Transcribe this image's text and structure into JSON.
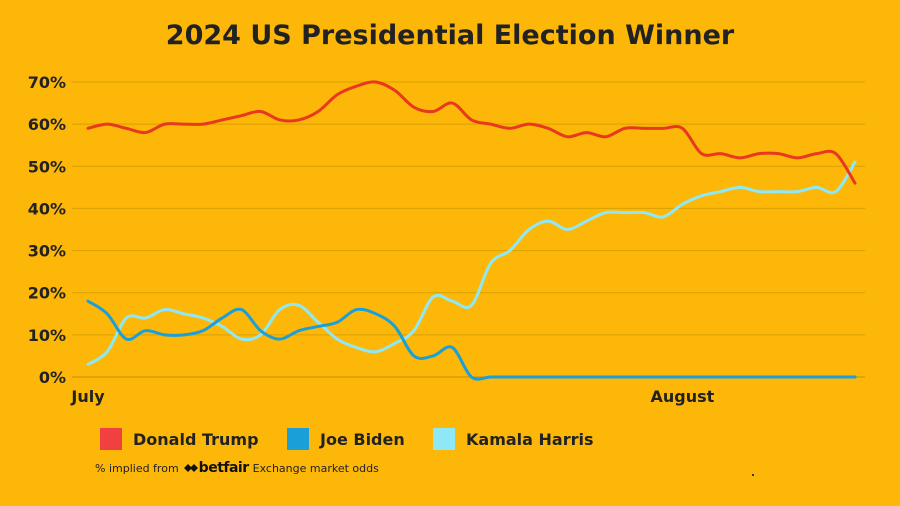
{
  "chart_data": {
    "type": "line",
    "title": "2024 US Presidential Election Winner",
    "xlabel": "",
    "ylabel": "",
    "x_tick_labels": [
      {
        "label": "July",
        "day": 0
      },
      {
        "label": "August",
        "day": 31
      }
    ],
    "x_range_days_from_july_1": [
      0,
      40
    ],
    "ylim": [
      0,
      70
    ],
    "y_ticks": [
      0,
      10,
      20,
      30,
      40,
      50,
      60,
      70
    ],
    "y_tick_suffix": "%",
    "grid": "horizontal",
    "legend_position": "bottom",
    "series": [
      {
        "name": "Donald Trump",
        "color": "#E83820",
        "swatch_color": "#F04040",
        "points": [
          [
            0,
            59
          ],
          [
            1,
            60
          ],
          [
            2,
            59
          ],
          [
            3,
            58
          ],
          [
            4,
            60
          ],
          [
            5,
            60
          ],
          [
            6,
            60
          ],
          [
            7,
            61
          ],
          [
            8,
            62
          ],
          [
            9,
            63
          ],
          [
            10,
            61
          ],
          [
            11,
            61
          ],
          [
            12,
            63
          ],
          [
            13,
            67
          ],
          [
            14,
            69
          ],
          [
            15,
            70
          ],
          [
            16,
            68
          ],
          [
            17,
            64
          ],
          [
            18,
            63
          ],
          [
            19,
            65
          ],
          [
            20,
            61
          ],
          [
            21,
            60
          ],
          [
            22,
            59
          ],
          [
            23,
            60
          ],
          [
            24,
            59
          ],
          [
            25,
            57
          ],
          [
            26,
            58
          ],
          [
            27,
            57
          ],
          [
            28,
            59
          ],
          [
            29,
            59
          ],
          [
            30,
            59
          ],
          [
            31,
            59
          ],
          [
            32,
            53
          ],
          [
            33,
            53
          ],
          [
            34,
            52
          ],
          [
            35,
            53
          ],
          [
            36,
            53
          ],
          [
            37,
            52
          ],
          [
            38,
            53
          ],
          [
            39,
            53
          ],
          [
            40,
            46
          ]
        ]
      },
      {
        "name": "Joe Biden",
        "color": "#1A9FD9",
        "swatch_color": "#1A9FD9",
        "points": [
          [
            0,
            18
          ],
          [
            1,
            15
          ],
          [
            2,
            9
          ],
          [
            3,
            11
          ],
          [
            4,
            10
          ],
          [
            5,
            10
          ],
          [
            6,
            11
          ],
          [
            7,
            14
          ],
          [
            8,
            16
          ],
          [
            9,
            11
          ],
          [
            10,
            9
          ],
          [
            11,
            11
          ],
          [
            12,
            12
          ],
          [
            13,
            13
          ],
          [
            14,
            16
          ],
          [
            15,
            15
          ],
          [
            16,
            12
          ],
          [
            17,
            5
          ],
          [
            18,
            5
          ],
          [
            19,
            7
          ],
          [
            20,
            0
          ],
          [
            21,
            0
          ],
          [
            22,
            0
          ],
          [
            23,
            0
          ],
          [
            24,
            0
          ],
          [
            25,
            0
          ],
          [
            26,
            0
          ],
          [
            27,
            0
          ],
          [
            28,
            0
          ],
          [
            29,
            0
          ],
          [
            30,
            0
          ],
          [
            31,
            0
          ],
          [
            32,
            0
          ],
          [
            33,
            0
          ],
          [
            34,
            0
          ],
          [
            35,
            0
          ],
          [
            36,
            0
          ],
          [
            37,
            0
          ],
          [
            38,
            0
          ],
          [
            39,
            0
          ],
          [
            40,
            0
          ]
        ]
      },
      {
        "name": "Kamala Harris",
        "color": "#8FE8F5",
        "swatch_color": "#8FE8F5",
        "points": [
          [
            0,
            3
          ],
          [
            1,
            6
          ],
          [
            2,
            14
          ],
          [
            3,
            14
          ],
          [
            4,
            16
          ],
          [
            5,
            15
          ],
          [
            6,
            14
          ],
          [
            7,
            12
          ],
          [
            8,
            9
          ],
          [
            9,
            10
          ],
          [
            10,
            16
          ],
          [
            11,
            17
          ],
          [
            12,
            13
          ],
          [
            13,
            9
          ],
          [
            14,
            7
          ],
          [
            15,
            6
          ],
          [
            16,
            8
          ],
          [
            17,
            11
          ],
          [
            18,
            19
          ],
          [
            19,
            18
          ],
          [
            20,
            17
          ],
          [
            21,
            27
          ],
          [
            22,
            30
          ],
          [
            23,
            35
          ],
          [
            24,
            37
          ],
          [
            25,
            35
          ],
          [
            26,
            37
          ],
          [
            27,
            39
          ],
          [
            28,
            39
          ],
          [
            29,
            39
          ],
          [
            30,
            38
          ],
          [
            31,
            41
          ],
          [
            32,
            43
          ],
          [
            33,
            44
          ],
          [
            34,
            45
          ],
          [
            35,
            44
          ],
          [
            36,
            44
          ],
          [
            37,
            44
          ],
          [
            38,
            45
          ],
          [
            39,
            44
          ],
          [
            40,
            51
          ]
        ]
      }
    ]
  },
  "footnote": {
    "prefix": "% implied from",
    "brand": "betfair",
    "suffix": "Exchange market odds"
  }
}
